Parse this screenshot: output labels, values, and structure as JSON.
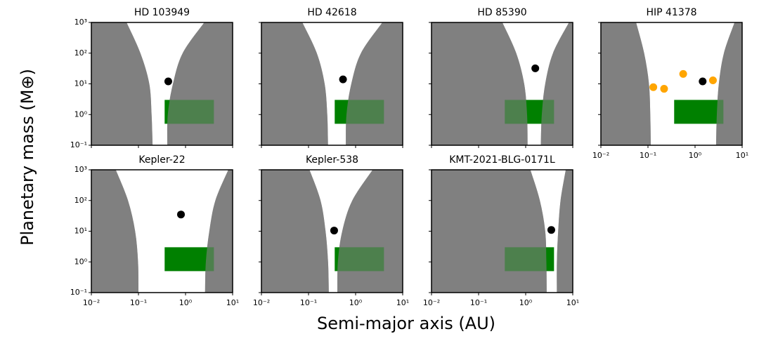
{
  "ylabel": "Planetary mass (M⊕)",
  "xlabel": "Semi-major axis (AU)",
  "chart_data": [
    {
      "type": "scatter",
      "title": "HD 103949",
      "xscale": "log",
      "yscale": "log",
      "xlim": [
        0.01,
        10
      ],
      "ylim": [
        0.1,
        1000
      ],
      "xticks": [
        0.01,
        0.1,
        1,
        10
      ],
      "yticks": [
        {
          "value": 0.1,
          "label": "10⁻¹"
        },
        {
          "value": 1,
          "label": "10⁰"
        },
        {
          "value": 10,
          "label": "10¹"
        },
        {
          "value": 100,
          "label": "10²"
        },
        {
          "value": 1000,
          "label": "10³"
        }
      ],
      "region_color": "#808080",
      "region_masses": [
        0.1,
        1,
        10,
        100,
        1000
      ],
      "left_region_x": [
        0.2,
        0.19,
        0.17,
        0.11,
        0.056
      ],
      "right_region_x": [
        0.41,
        0.42,
        0.54,
        0.87,
        2.5
      ],
      "box": {
        "color": "#008000",
        "x": [
          0.36,
          4
        ],
        "y": [
          0.5,
          3
        ]
      },
      "series": [
        {
          "color": "#000000",
          "x": [
            0.43
          ],
          "values": [
            12
          ]
        }
      ]
    },
    {
      "type": "scatter",
      "title": "HD 42618",
      "xscale": "log",
      "yscale": "log",
      "xlim": [
        0.01,
        10
      ],
      "ylim": [
        0.1,
        1000
      ],
      "xticks": [
        0.01,
        0.1,
        1,
        10
      ],
      "yticks": [
        0.1,
        1,
        10,
        100,
        1000
      ],
      "region_color": "#808080",
      "region_masses": [
        0.1,
        1,
        10,
        100,
        1000
      ],
      "left_region_x": [
        0.26,
        0.25,
        0.22,
        0.15,
        0.074
      ],
      "right_region_x": [
        0.62,
        0.64,
        0.81,
        1.3,
        3.7
      ],
      "box": {
        "color": "#008000",
        "x": [
          0.36,
          4
        ],
        "y": [
          0.5,
          3
        ]
      },
      "series": [
        {
          "color": "#000000",
          "x": [
            0.54
          ],
          "values": [
            14
          ]
        }
      ]
    },
    {
      "type": "scatter",
      "title": "HD 85390",
      "xscale": "log",
      "yscale": "log",
      "xlim": [
        0.01,
        10
      ],
      "ylim": [
        0.1,
        1000
      ],
      "xticks": [
        0.01,
        0.1,
        1,
        10
      ],
      "yticks": [
        0.1,
        1,
        10,
        100,
        1000
      ],
      "region_color": "#808080",
      "region_masses": [
        0.1,
        1,
        10,
        100,
        1000
      ],
      "left_region_x": [
        1.1,
        1.07,
        0.93,
        0.63,
        0.32
      ],
      "right_region_x": [
        2.1,
        2.2,
        2.6,
        3.8,
        8.3
      ],
      "box": {
        "color": "#008000",
        "x": [
          0.36,
          4
        ],
        "y": [
          0.5,
          3
        ]
      },
      "series": [
        {
          "color": "#000000",
          "x": [
            1.6
          ],
          "values": [
            32
          ]
        }
      ]
    },
    {
      "type": "scatter",
      "title": "HIP 41378",
      "xscale": "log",
      "yscale": "log",
      "xlim": [
        0.01,
        10
      ],
      "ylim": [
        0.1,
        1000
      ],
      "xticks": [
        {
          "value": 0.01,
          "label": "10⁻²"
        },
        {
          "value": 0.1,
          "label": "10⁻¹"
        },
        {
          "value": 1,
          "label": "10⁰"
        },
        {
          "value": 10,
          "label": "10¹"
        }
      ],
      "yticks": [
        0.1,
        1,
        10,
        100,
        1000
      ],
      "region_color": "#808080",
      "region_masses": [
        0.1,
        1,
        10,
        100,
        1000
      ],
      "left_region_x": [
        0.115,
        0.112,
        0.105,
        0.083,
        0.056
      ],
      "right_region_x": [
        2.8,
        2.9,
        3.2,
        4.1,
        6.9
      ],
      "box": {
        "color": "#008000",
        "x": [
          0.36,
          4
        ],
        "y": [
          0.5,
          3
        ]
      },
      "series": [
        {
          "color": "#ffa500",
          "x": [
            0.13,
            0.22,
            0.56,
            2.4
          ],
          "values": [
            7.8,
            6.9,
            21,
            13
          ]
        },
        {
          "color": "#000000",
          "x": [
            1.45
          ],
          "values": [
            12
          ]
        }
      ]
    },
    {
      "type": "scatter",
      "title": "Kepler-22",
      "xscale": "log",
      "yscale": "log",
      "xlim": [
        0.01,
        10
      ],
      "ylim": [
        0.1,
        1000
      ],
      "xticks": [
        {
          "value": 0.01,
          "label": "10⁻²"
        },
        {
          "value": 0.1,
          "label": "10⁻¹"
        },
        {
          "value": 1,
          "label": "10⁰"
        },
        {
          "value": 10,
          "label": "10¹"
        }
      ],
      "yticks": [
        {
          "value": 0.1,
          "label": "10⁻¹"
        },
        {
          "value": 1,
          "label": "10⁰"
        },
        {
          "value": 10,
          "label": "10¹"
        },
        {
          "value": 100,
          "label": "10²"
        },
        {
          "value": 1000,
          "label": "10³"
        }
      ],
      "region_color": "#808080",
      "region_masses": [
        0.1,
        1,
        10,
        100,
        1000
      ],
      "left_region_x": [
        0.1,
        0.098,
        0.085,
        0.06,
        0.033
      ],
      "right_region_x": [
        2.6,
        2.7,
        3.2,
        4.3,
        8.1
      ],
      "box": {
        "color": "#008000",
        "x": [
          0.36,
          4
        ],
        "y": [
          0.5,
          3
        ]
      },
      "series": [
        {
          "color": "#000000",
          "x": [
            0.8
          ],
          "values": [
            35
          ]
        }
      ]
    },
    {
      "type": "scatter",
      "title": "Kepler-538",
      "xscale": "log",
      "yscale": "log",
      "xlim": [
        0.01,
        10
      ],
      "ylim": [
        0.1,
        1000
      ],
      "xticks": [
        {
          "value": 0.01,
          "label": "10⁻²"
        },
        {
          "value": 0.1,
          "label": "10⁻¹"
        },
        {
          "value": 1,
          "label": "10⁰"
        },
        {
          "value": 10,
          "label": "10¹"
        }
      ],
      "yticks": [
        0.1,
        1,
        10,
        100,
        1000
      ],
      "region_color": "#808080",
      "region_masses": [
        0.1,
        1,
        10,
        100,
        1000
      ],
      "left_region_x": [
        0.27,
        0.26,
        0.23,
        0.18,
        0.105
      ],
      "right_region_x": [
        0.41,
        0.42,
        0.52,
        0.85,
        2.3
      ],
      "box": {
        "color": "#008000",
        "x": [
          0.36,
          4
        ],
        "y": [
          0.5,
          3
        ]
      },
      "series": [
        {
          "color": "#000000",
          "x": [
            0.35
          ],
          "values": [
            10.5
          ]
        }
      ]
    },
    {
      "type": "scatter",
      "title": "KMT-2021-BLG-0171L",
      "xscale": "log",
      "yscale": "log",
      "xlim": [
        0.01,
        10
      ],
      "ylim": [
        0.1,
        1000
      ],
      "xticks": [
        {
          "value": 0.01,
          "label": "10⁻²"
        },
        {
          "value": 0.1,
          "label": "10⁻¹"
        },
        {
          "value": 1,
          "label": "10⁰"
        },
        {
          "value": 10,
          "label": "10¹"
        }
      ],
      "yticks": [
        0.1,
        1,
        10,
        100,
        1000
      ],
      "region_color": "#808080",
      "region_masses": [
        0.1,
        1,
        10,
        100,
        1000
      ],
      "left_region_x": [
        2.8,
        2.75,
        2.6,
        2.0,
        1.26
      ],
      "right_region_x": [
        4.6,
        4.6,
        4.9,
        5.5,
        7.1
      ],
      "box": {
        "color": "#008000",
        "x": [
          0.36,
          4
        ],
        "y": [
          0.5,
          3
        ]
      },
      "series": [
        {
          "color": "#000000",
          "x": [
            3.5
          ],
          "values": [
            11
          ]
        }
      ]
    }
  ]
}
